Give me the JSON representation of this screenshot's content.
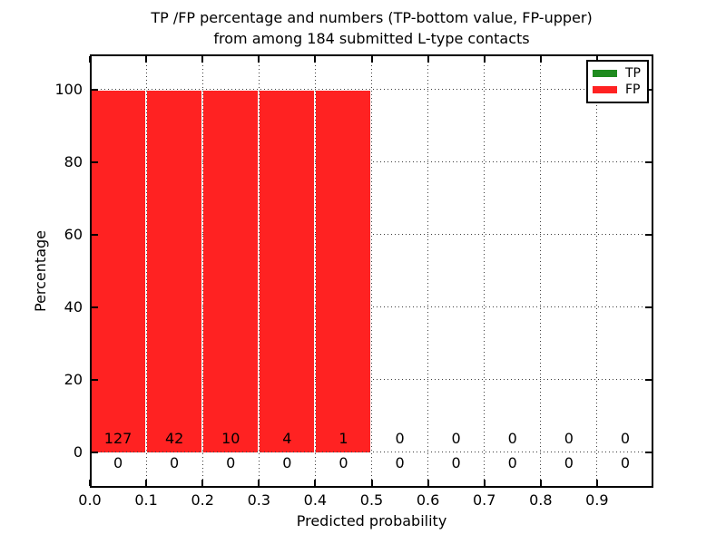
{
  "chart_data": {
    "type": "bar",
    "title_lines": [
      "TP /FP percentage and numbers (TP-bottom value, FP-upper)",
      "from among 184 submitted L-type contacts"
    ],
    "xlabel": "Predicted probability",
    "ylabel": "Percentage",
    "x_tick_labels": [
      "0.0",
      "0.1",
      "0.2",
      "0.3",
      "0.4",
      "0.5",
      "0.6",
      "0.7",
      "0.8",
      "0.9"
    ],
    "y_tick_labels": [
      "0",
      "20",
      "40",
      "60",
      "80",
      "100"
    ],
    "y_tick_values": [
      0,
      20,
      40,
      60,
      80,
      100
    ],
    "xlim": [
      0.0,
      1.0
    ],
    "ylim": [
      -10,
      110
    ],
    "bin_width": 0.1,
    "bin_starts": [
      0.0,
      0.1,
      0.2,
      0.3,
      0.4,
      0.5,
      0.6,
      0.7,
      0.8,
      0.9
    ],
    "grid_style": "dotted",
    "legend_position": "upper right",
    "bar_stacking": "TP bottom, FP upper",
    "series": [
      {
        "name": "TP",
        "color": "#1f8b1f",
        "percent": [
          0,
          0,
          0,
          0,
          0,
          0,
          0,
          0,
          0,
          0
        ],
        "counts": [
          0,
          0,
          0,
          0,
          0,
          0,
          0,
          0,
          0,
          0
        ],
        "count_row": "lower"
      },
      {
        "name": "FP",
        "color": "#ff2222",
        "percent": [
          100,
          100,
          100,
          100,
          100,
          0,
          0,
          0,
          0,
          0
        ],
        "counts": [
          127,
          42,
          10,
          4,
          1,
          0,
          0,
          0,
          0,
          0
        ],
        "count_row": "upper"
      }
    ]
  }
}
